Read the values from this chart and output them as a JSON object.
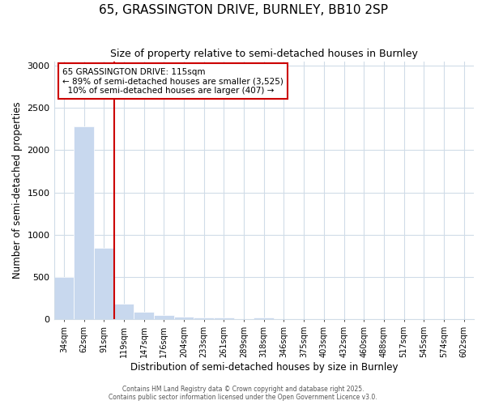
{
  "title1": "65, GRASSINGTON DRIVE, BURNLEY, BB10 2SP",
  "title2": "Size of property relative to semi-detached houses in Burnley",
  "xlabel": "Distribution of semi-detached houses by size in Burnley",
  "ylabel": "Number of semi-detached properties",
  "categories": [
    "34sqm",
    "62sqm",
    "91sqm",
    "119sqm",
    "147sqm",
    "176sqm",
    "204sqm",
    "233sqm",
    "261sqm",
    "289sqm",
    "318sqm",
    "346sqm",
    "375sqm",
    "403sqm",
    "432sqm",
    "460sqm",
    "488sqm",
    "517sqm",
    "545sqm",
    "574sqm",
    "602sqm"
  ],
  "values": [
    500,
    2280,
    850,
    190,
    90,
    50,
    30,
    20,
    20,
    0,
    20,
    0,
    0,
    0,
    0,
    0,
    0,
    0,
    0,
    0,
    0
  ],
  "bar_color": "#c8d8ee",
  "bar_edge_color": "#c8d8ee",
  "vline_color": "#cc0000",
  "vline_pos": 2.5,
  "annotation_text": "65 GRASSINGTON DRIVE: 115sqm\n← 89% of semi-detached houses are smaller (3,525)\n  10% of semi-detached houses are larger (407) →",
  "annotation_box_color": "#cc0000",
  "ylim": [
    0,
    3050
  ],
  "yticks": [
    0,
    500,
    1000,
    1500,
    2000,
    2500,
    3000
  ],
  "background_color": "#ffffff",
  "grid_color": "#d0dce8",
  "footer": "Contains HM Land Registry data © Crown copyright and database right 2025.\nContains public sector information licensed under the Open Government Licence v3.0."
}
